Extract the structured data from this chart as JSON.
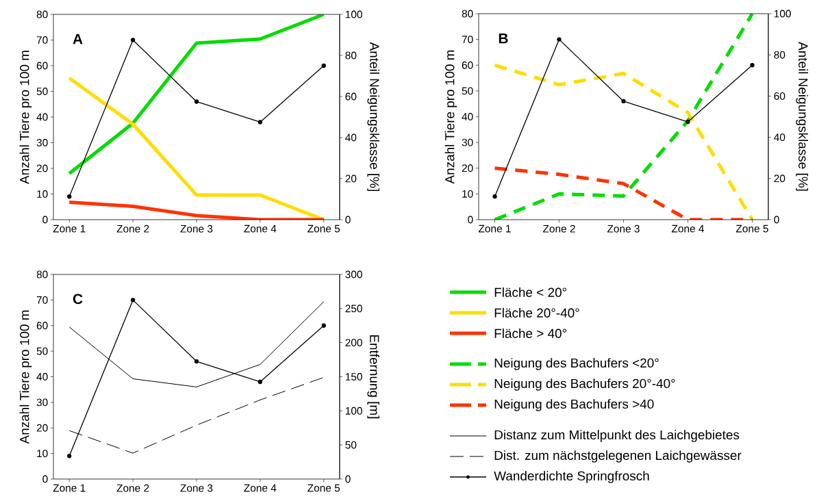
{
  "chart_data": [
    {
      "type": "line",
      "title": "A",
      "ylabel": "Anzahl Tiere pro 100 m",
      "y2label": "Anteil Neigungsklasse [%]",
      "categories": [
        "Zone 1",
        "Zone 2",
        "Zone 3",
        "Zone 4",
        "Zone 5"
      ],
      "ylim": [
        0,
        80
      ],
      "yticks": [
        0,
        10,
        20,
        30,
        40,
        50,
        60,
        70,
        80
      ],
      "y2lim": [
        0,
        100
      ],
      "y2ticks": [
        0,
        20,
        40,
        60,
        80,
        100
      ],
      "legend": "bottom right",
      "series": [
        {
          "name": "Fläche < 20°",
          "color": "#00dd00",
          "axis": "y2",
          "line_style": "solid",
          "marker": "none",
          "values": [
            22.5,
            47,
            86,
            88,
            100
          ]
        },
        {
          "name": "Fläche 20°-40°",
          "color": "#ffdd00",
          "axis": "y2",
          "line_style": "solid",
          "marker": "none",
          "values": [
            69,
            46.5,
            12,
            12,
            0
          ]
        },
        {
          "name": "Fläche > 40°",
          "color": "#ff3300",
          "axis": "y2",
          "line_style": "solid",
          "marker": "none",
          "values": [
            8.5,
            6.5,
            2,
            0,
            0
          ]
        },
        {
          "color": "#000000",
          "axis": "y",
          "line_style": "solid",
          "marker": "circle",
          "values": [
            9,
            70,
            46,
            38,
            60
          ]
        }
      ]
    },
    {
      "type": "line",
      "title": "B",
      "ylabel": "Anzahl Tiere pro 100 m",
      "y2label": "Anteil Neigungsklasse [%]",
      "categories": [
        "Zone 1",
        "Zone 2",
        "Zone 3",
        "Zone 4",
        "Zone 5"
      ],
      "ylim": [
        0,
        80
      ],
      "yticks": [
        0,
        10,
        20,
        30,
        40,
        50,
        60,
        70,
        80
      ],
      "y2lim": [
        0,
        100
      ],
      "y2ticks": [
        0,
        20,
        40,
        60,
        80,
        100
      ],
      "legend": "bottom",
      "series": [
        {
          "name": "Neigung des Bachufers <20°",
          "color": "#00dd00",
          "axis": "y2",
          "line_style": "dashed",
          "marker": "none",
          "values": [
            0,
            12.5,
            11.5,
            48,
            100
          ]
        },
        {
          "name": "Neigung des Bachufers 20°-40°",
          "color": "#ffdd00",
          "axis": "y2",
          "line_style": "dashed",
          "marker": "none",
          "values": [
            75,
            65.5,
            71,
            52,
            0
          ]
        },
        {
          "name": "Neigung des Bachufers >40",
          "color": "#ff3300",
          "axis": "y2",
          "line_style": "dashed",
          "marker": "none",
          "values": [
            25,
            22,
            17.5,
            0,
            0
          ]
        },
        {
          "color": "#000000",
          "axis": "y",
          "line_style": "solid",
          "marker": "circle",
          "values": [
            9,
            70,
            46,
            38,
            60
          ]
        }
      ]
    },
    {
      "type": "line",
      "title": "C",
      "ylabel": "Anzahl Tiere pro 100 m",
      "y2label": "Entfernung [m]",
      "categories": [
        "Zone 1",
        "Zone 2",
        "Zone 3",
        "Zone 4",
        "Zone 5"
      ],
      "ylim": [
        0,
        80
      ],
      "yticks": [
        0,
        10,
        20,
        30,
        40,
        50,
        60,
        70,
        80
      ],
      "y2lim": [
        0,
        300
      ],
      "y2ticks": [
        0,
        50,
        100,
        150,
        200,
        250,
        300
      ],
      "legend": "right",
      "series": [
        {
          "name": "Distanz zum Mittelpunkt des Laichgebietes",
          "color": "#000000",
          "axis": "y2",
          "line_style": "solid",
          "marker": "none",
          "values": [
            223,
            147,
            135,
            168,
            260
          ]
        },
        {
          "name": "Dist. zum nächstgelegenen Laichgewässer",
          "color": "#000000",
          "axis": "y2",
          "line_style": "dashed",
          "marker": "none",
          "values": [
            71,
            38,
            79,
            116,
            149
          ]
        },
        {
          "name": "Wanderdichte Springfrosch",
          "color": "#000000",
          "axis": "y",
          "line_style": "solid",
          "marker": "circle",
          "values": [
            9,
            70,
            46,
            38,
            60
          ]
        }
      ]
    }
  ]
}
